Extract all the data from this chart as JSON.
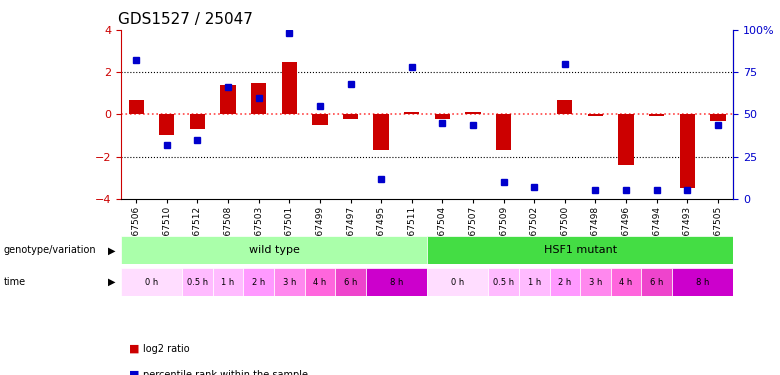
{
  "title": "GDS1527 / 25047",
  "samples": [
    "GSM67506",
    "GSM67510",
    "GSM67512",
    "GSM67508",
    "GSM67503",
    "GSM67501",
    "GSM67499",
    "GSM67497",
    "GSM67495",
    "GSM67511",
    "GSM67504",
    "GSM67507",
    "GSM67509",
    "GSM67502",
    "GSM67500",
    "GSM67498",
    "GSM67496",
    "GSM67494",
    "GSM67493",
    "GSM67505"
  ],
  "log2_ratio": [
    0.7,
    -1.0,
    -0.7,
    1.4,
    1.5,
    2.5,
    -0.5,
    -0.2,
    -1.7,
    0.1,
    -0.2,
    0.1,
    -1.7,
    0.0,
    0.7,
    -0.1,
    -2.4,
    -0.1,
    -3.5,
    -0.3
  ],
  "percentile_rank": [
    82,
    32,
    35,
    66,
    60,
    98,
    55,
    68,
    12,
    78,
    45,
    44,
    10,
    7,
    80,
    5,
    5,
    5,
    5,
    44
  ],
  "bar_color": "#cc0000",
  "dot_color": "#0000cc",
  "zero_line_color": "#ff4444",
  "ylim": [
    -4,
    4
  ],
  "y2lim": [
    0,
    100
  ],
  "yticks": [
    -4,
    -2,
    0,
    2,
    4
  ],
  "y2ticks": [
    0,
    25,
    50,
    75,
    100
  ],
  "y2ticklabels": [
    "0",
    "25",
    "50",
    "75",
    "100%"
  ],
  "ylabel_color": "#cc0000",
  "y2label_color": "#0000cc",
  "title_fontsize": 11,
  "tick_fontsize": 8,
  "wt_time": [
    {
      "label": "0 h",
      "start": 0,
      "end": 1,
      "color": "#ffddff"
    },
    {
      "label": "0.5 h",
      "start": 2,
      "end": 2,
      "color": "#ffbbff"
    },
    {
      "label": "1 h",
      "start": 3,
      "end": 3,
      "color": "#ffbbff"
    },
    {
      "label": "2 h",
      "start": 4,
      "end": 4,
      "color": "#ff99ff"
    },
    {
      "label": "3 h",
      "start": 5,
      "end": 5,
      "color": "#ff88ee"
    },
    {
      "label": "4 h",
      "start": 6,
      "end": 6,
      "color": "#ff66dd"
    },
    {
      "label": "6 h",
      "start": 7,
      "end": 7,
      "color": "#ee44cc"
    },
    {
      "label": "8 h",
      "start": 8,
      "end": 9,
      "color": "#cc00cc"
    }
  ],
  "mut_time": [
    {
      "label": "0 h",
      "start": 10,
      "end": 11,
      "color": "#ffddff"
    },
    {
      "label": "0.5 h",
      "start": 12,
      "end": 12,
      "color": "#ffbbff"
    },
    {
      "label": "1 h",
      "start": 13,
      "end": 13,
      "color": "#ffbbff"
    },
    {
      "label": "2 h",
      "start": 14,
      "end": 14,
      "color": "#ff99ff"
    },
    {
      "label": "3 h",
      "start": 15,
      "end": 15,
      "color": "#ff88ee"
    },
    {
      "label": "4 h",
      "start": 16,
      "end": 16,
      "color": "#ff66dd"
    },
    {
      "label": "6 h",
      "start": 17,
      "end": 17,
      "color": "#ee44cc"
    },
    {
      "label": "8 h",
      "start": 18,
      "end": 19,
      "color": "#cc00cc"
    }
  ],
  "genotype_groups": [
    {
      "label": "wild type",
      "start": 0,
      "end": 9,
      "color": "#aaffaa"
    },
    {
      "label": "HSF1 mutant",
      "start": 10,
      "end": 19,
      "color": "#44dd44"
    }
  ],
  "legend_items": [
    {
      "label": "log2 ratio",
      "color": "#cc0000"
    },
    {
      "label": "percentile rank within the sample",
      "color": "#0000cc"
    }
  ]
}
